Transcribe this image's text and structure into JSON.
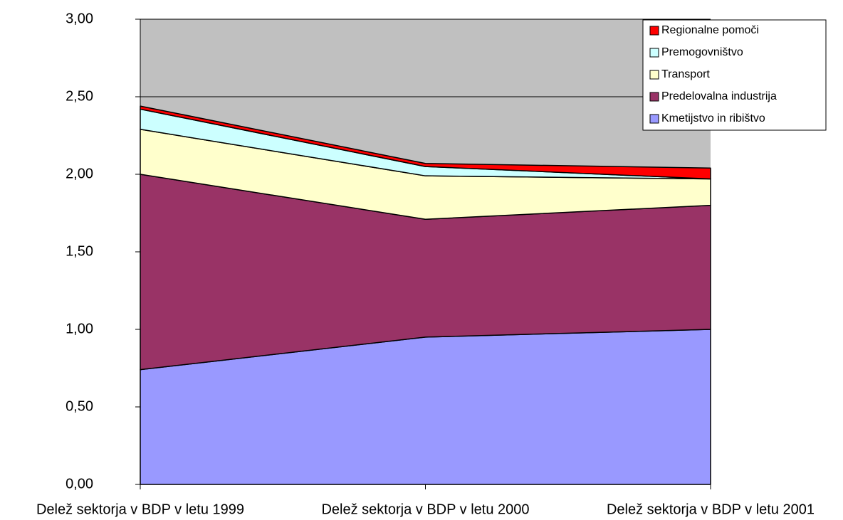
{
  "chart_data": {
    "type": "stacked_area",
    "categories": [
      "Delež sektorja v BDP v letu 1999",
      "Delež sektorja v BDP v letu 2000",
      "Delež sektorja v BDP v letu 2001"
    ],
    "series": [
      {
        "name": "Kmetijstvo in ribištvo",
        "color": "#9999ff",
        "values": [
          0.74,
          0.95,
          1.0
        ]
      },
      {
        "name": "Predelovalna industrija",
        "color": "#993366",
        "values": [
          1.26,
          0.76,
          0.8
        ]
      },
      {
        "name": "Transport",
        "color": "#ffffcc",
        "values": [
          0.29,
          0.28,
          0.17
        ]
      },
      {
        "name": "Premogovništvo",
        "color": "#ccffff",
        "values": [
          0.13,
          0.06,
          0.0
        ]
      },
      {
        "name": "Regionalne pomoči",
        "color": "#ff0000",
        "values": [
          0.02,
          0.02,
          0.07
        ]
      }
    ],
    "ylim": [
      0,
      3
    ],
    "yticks": [
      {
        "value": 0,
        "label": "0,00"
      },
      {
        "value": 0.5,
        "label": "0,50"
      },
      {
        "value": 1,
        "label": "1,00"
      },
      {
        "value": 1.5,
        "label": "1,50"
      },
      {
        "value": 2,
        "label": "2,00"
      },
      {
        "value": 2.5,
        "label": "2,50"
      },
      {
        "value": 3,
        "label": "3,00"
      }
    ],
    "plot_background": "#c0c0c0",
    "grid": true,
    "legend": "top-right"
  }
}
